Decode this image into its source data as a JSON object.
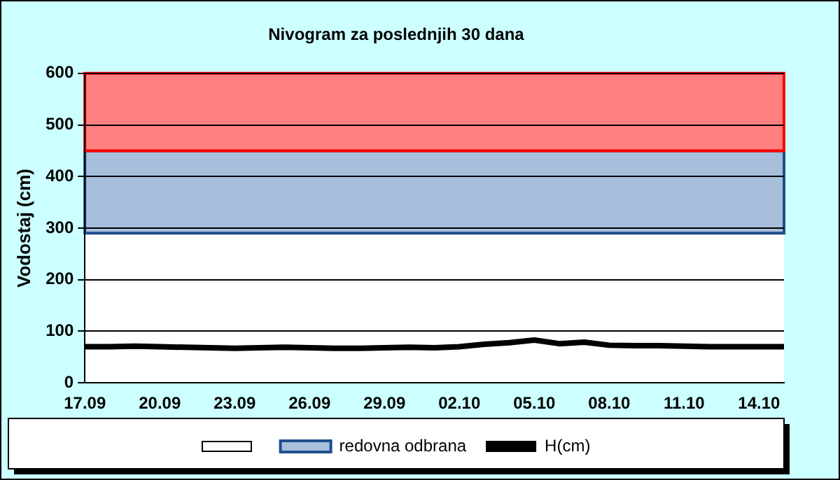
{
  "chart_data": {
    "type": "line",
    "title": "Nivogram za poslednjih 30 dana",
    "ylabel": "Vodostaj (cm)",
    "categories": [
      "17.09",
      null,
      null,
      "20.09",
      null,
      null,
      "23.09",
      null,
      null,
      "26.09",
      null,
      null,
      "29.09",
      null,
      null,
      "02.10",
      null,
      null,
      "05.10",
      null,
      null,
      "08.10",
      null,
      null,
      "11.10",
      null,
      null,
      "14.10",
      null
    ],
    "series": [
      {
        "name": "H(cm)",
        "color": "#000000",
        "values": [
          70,
          70,
          71,
          70,
          69,
          68,
          67,
          68,
          69,
          68,
          67,
          67,
          68,
          69,
          68,
          70,
          75,
          78,
          83,
          76,
          79,
          73,
          72,
          72,
          71,
          70,
          70,
          70,
          70
        ]
      }
    ],
    "ylim": [
      0,
      600
    ],
    "yticks": [
      0,
      100,
      200,
      300,
      400,
      500,
      600
    ],
    "grid": "y",
    "legend": "bottom",
    "marker": "none",
    "line_style": "solid",
    "bands": [
      {
        "axis": "y",
        "from": 290,
        "to": 450,
        "label": "redovna odbrana",
        "color": "#a8bfdc"
      },
      {
        "axis": "y",
        "from": 450,
        "to": 600,
        "color": "#ff8080"
      }
    ]
  }
}
